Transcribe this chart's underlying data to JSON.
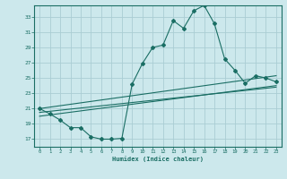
{
  "xlabel": "Humidex (Indice chaleur)",
  "ylabel": "",
  "bg_color": "#cce8ec",
  "grid_color": "#aacdd4",
  "line_color": "#1a6e64",
  "xlim": [
    -0.5,
    23.5
  ],
  "ylim": [
    16.0,
    34.5
  ],
  "yticks": [
    17,
    19,
    21,
    23,
    25,
    27,
    29,
    31,
    33
  ],
  "xticks": [
    0,
    1,
    2,
    3,
    4,
    5,
    6,
    7,
    8,
    9,
    10,
    11,
    12,
    13,
    14,
    15,
    16,
    17,
    18,
    19,
    20,
    21,
    22,
    23
  ],
  "main_curve_x": [
    0,
    1,
    2,
    3,
    4,
    5,
    6,
    7,
    8,
    9,
    10,
    11,
    12,
    13,
    14,
    15,
    16,
    17,
    18,
    19,
    20,
    21,
    22,
    23
  ],
  "main_curve_y": [
    21.0,
    20.3,
    19.5,
    18.5,
    18.5,
    17.3,
    17.0,
    17.0,
    17.1,
    24.2,
    26.9,
    29.0,
    29.3,
    32.5,
    31.5,
    33.8,
    34.5,
    32.1,
    27.5,
    26.0,
    24.3,
    25.3,
    25.0,
    24.5
  ],
  "line2_x": [
    0,
    23
  ],
  "line2_y": [
    21.0,
    25.3
  ],
  "line3_x": [
    0,
    23
  ],
  "line3_y": [
    20.5,
    23.8
  ],
  "line4_x": [
    0,
    23
  ],
  "line4_y": [
    20.0,
    24.0
  ]
}
